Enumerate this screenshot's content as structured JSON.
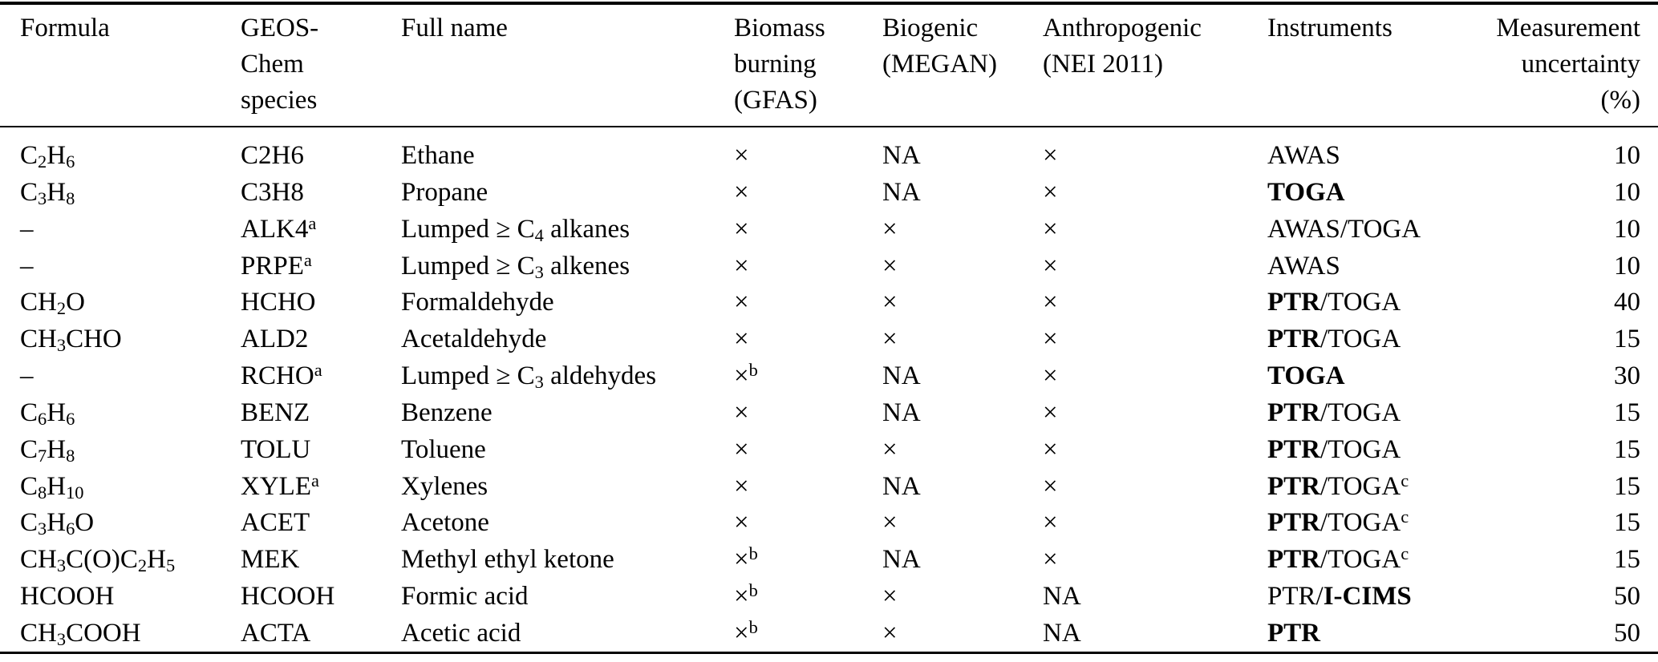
{
  "table": {
    "columns": [
      {
        "key": "formula",
        "label": "Formula"
      },
      {
        "key": "species",
        "label": "GEOS-\nChem\nspecies"
      },
      {
        "key": "full_name",
        "label": "Full name"
      },
      {
        "key": "biomass",
        "label": "Biomass\nburning\n(GFAS)"
      },
      {
        "key": "biogenic",
        "label": "Biogenic\n(MEGAN)"
      },
      {
        "key": "anthropogenic",
        "label": "Anthropogenic\n(NEI 2011)"
      },
      {
        "key": "instruments",
        "label": "Instruments"
      },
      {
        "key": "uncertainty",
        "label": "Measurement\nuncertainty\n(%)"
      }
    ],
    "rows": [
      {
        "formula": "C_{2}H_{6}",
        "species": "C2H6",
        "full_name": "Ethane",
        "biomass": "×",
        "biogenic": "NA",
        "anthropogenic": "×",
        "instruments": "AWAS",
        "uncertainty": "10"
      },
      {
        "formula": "C_{3}H_{8}",
        "species": "C3H8",
        "full_name": "Propane",
        "biomass": "×",
        "biogenic": "NA",
        "anthropogenic": "×",
        "instruments": "**TOGA**",
        "uncertainty": "10"
      },
      {
        "formula": "–",
        "species": "ALK4^{a}",
        "full_name": "Lumped ≥ C_{4} alkanes",
        "biomass": "×",
        "biogenic": "×",
        "anthropogenic": "×",
        "instruments": "AWAS/TOGA",
        "uncertainty": "10"
      },
      {
        "formula": "–",
        "species": "PRPE^{a}",
        "full_name": "Lumped ≥ C_{3} alkenes",
        "biomass": "×",
        "biogenic": "×",
        "anthropogenic": "×",
        "instruments": "AWAS",
        "uncertainty": "10"
      },
      {
        "formula": "CH_{2}O",
        "species": "HCHO",
        "full_name": "Formaldehyde",
        "biomass": "×",
        "biogenic": "×",
        "anthropogenic": "×",
        "instruments": "**PTR**/TOGA",
        "uncertainty": "40"
      },
      {
        "formula": "CH_{3}CHO",
        "species": "ALD2",
        "full_name": "Acetaldehyde",
        "biomass": "×",
        "biogenic": "×",
        "anthropogenic": "×",
        "instruments": "**PTR**/TOGA",
        "uncertainty": "15"
      },
      {
        "formula": "–",
        "species": "RCHO^{a}",
        "full_name": "Lumped ≥ C_{3} aldehydes",
        "biomass": "×^{b}",
        "biogenic": "NA",
        "anthropogenic": "×",
        "instruments": "**TOGA**",
        "uncertainty": "30"
      },
      {
        "formula": "C_{6}H_{6}",
        "species": "BENZ",
        "full_name": "Benzene",
        "biomass": "×",
        "biogenic": "NA",
        "anthropogenic": "×",
        "instruments": "**PTR**/TOGA",
        "uncertainty": "15"
      },
      {
        "formula": "C_{7}H_{8}",
        "species": "TOLU",
        "full_name": "Toluene",
        "biomass": "×",
        "biogenic": "×",
        "anthropogenic": "×",
        "instruments": "**PTR**/TOGA",
        "uncertainty": "15"
      },
      {
        "formula": "C_{8}H_{10}",
        "species": "XYLE^{a}",
        "full_name": "Xylenes",
        "biomass": "×",
        "biogenic": "NA",
        "anthropogenic": "×",
        "instruments": "**PTR**/TOGA^{c}",
        "uncertainty": "15"
      },
      {
        "formula": "C_{3}H_{6}O",
        "species": "ACET",
        "full_name": "Acetone",
        "biomass": "×",
        "biogenic": "×",
        "anthropogenic": "×",
        "instruments": "**PTR**/TOGA^{c}",
        "uncertainty": "15"
      },
      {
        "formula": "CH_{3}C(O)C_{2}H_{5}",
        "species": "MEK",
        "full_name": "Methyl ethyl ketone",
        "biomass": "×^{b}",
        "biogenic": "NA",
        "anthropogenic": "×",
        "instruments": "**PTR**/TOGA^{c}",
        "uncertainty": "15"
      },
      {
        "formula": "HCOOH",
        "species": "HCOOH",
        "full_name": "Formic acid",
        "biomass": "×^{b}",
        "biogenic": "×",
        "anthropogenic": "NA",
        "instruments": "PTR/**I-CIMS**",
        "uncertainty": "50"
      },
      {
        "formula": "CH_{3}COOH",
        "species": "ACTA",
        "full_name": "Acetic acid",
        "biomass": "×^{b}",
        "biogenic": "×",
        "anthropogenic": "NA",
        "instruments": "**PTR**",
        "uncertainty": "50"
      }
    ]
  }
}
